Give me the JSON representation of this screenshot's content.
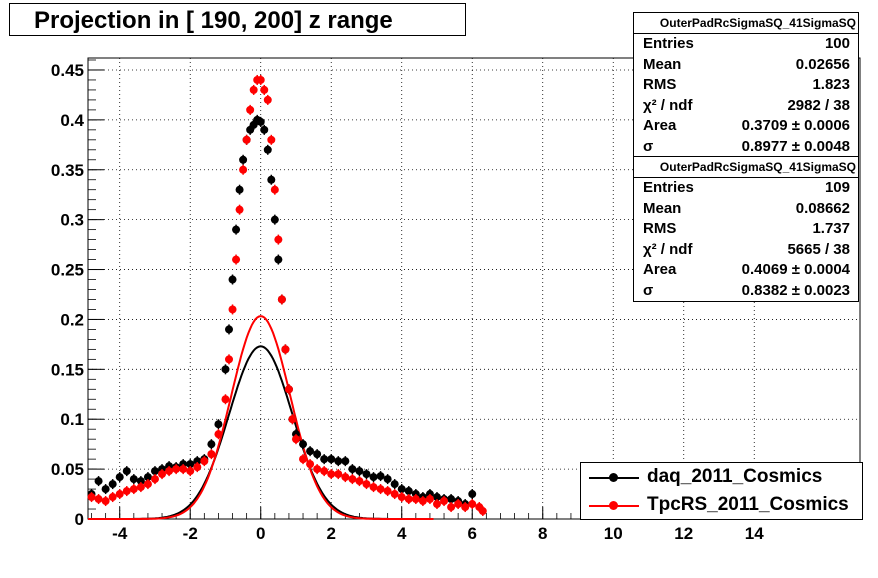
{
  "title": "Projection in [ 190, 200] z range",
  "chart_data": {
    "type": "scatter",
    "xlim": [
      -4.9,
      17.0
    ],
    "ylim": [
      0,
      0.462
    ],
    "xticks": [
      -4,
      -2,
      0,
      2,
      4,
      6,
      8,
      10,
      12,
      14
    ],
    "yticks": [
      0,
      0.05,
      0.1,
      0.15,
      0.2,
      0.25,
      0.3,
      0.35,
      0.4,
      0.45
    ],
    "grid": true,
    "legend_position": "bottom-right",
    "series": [
      {
        "name": "daq_2011_Cosmics",
        "color": "#000000",
        "x": [
          -4.8,
          -4.6,
          -4.4,
          -4.2,
          -4.0,
          -3.8,
          -3.6,
          -3.4,
          -3.2,
          -3.0,
          -2.8,
          -2.6,
          -2.4,
          -2.2,
          -2.0,
          -1.8,
          -1.6,
          -1.4,
          -1.2,
          -1.0,
          -0.9,
          -0.8,
          -0.7,
          -0.6,
          -0.5,
          -0.4,
          -0.3,
          -0.2,
          -0.1,
          0.0,
          0.1,
          0.2,
          0.3,
          0.4,
          0.5,
          0.6,
          0.7,
          0.8,
          0.9,
          1.0,
          1.2,
          1.4,
          1.6,
          1.8,
          2.0,
          2.2,
          2.4,
          2.6,
          2.8,
          3.0,
          3.2,
          3.4,
          3.6,
          3.8,
          4.0,
          4.2,
          4.4,
          4.6,
          4.8,
          5.0,
          5.2,
          5.4,
          5.6,
          5.8,
          6.0
        ],
        "y": [
          0.025,
          0.038,
          0.03,
          0.035,
          0.042,
          0.048,
          0.04,
          0.038,
          0.042,
          0.048,
          0.05,
          0.053,
          0.052,
          0.055,
          0.055,
          0.058,
          0.06,
          0.075,
          0.095,
          0.15,
          0.19,
          0.24,
          0.29,
          0.33,
          0.36,
          0.38,
          0.39,
          0.395,
          0.4,
          0.398,
          0.39,
          0.37,
          0.34,
          0.3,
          0.26,
          0.22,
          0.17,
          0.13,
          0.1,
          0.085,
          0.075,
          0.068,
          0.065,
          0.06,
          0.06,
          0.058,
          0.058,
          0.05,
          0.048,
          0.045,
          0.042,
          0.043,
          0.04,
          0.035,
          0.03,
          0.028,
          0.025,
          0.022,
          0.025,
          0.022,
          0.02,
          0.02,
          0.018,
          0.015,
          0.025
        ],
        "fit_area": 0.3709,
        "fit_sigma": 0.8977
      },
      {
        "name": "TpcRS_2011_Cosmics",
        "color": "#ff0000",
        "x": [
          -4.8,
          -4.6,
          -4.4,
          -4.2,
          -4.0,
          -3.8,
          -3.6,
          -3.4,
          -3.2,
          -3.0,
          -2.8,
          -2.6,
          -2.4,
          -2.2,
          -2.0,
          -1.8,
          -1.6,
          -1.4,
          -1.2,
          -1.0,
          -0.9,
          -0.8,
          -0.7,
          -0.6,
          -0.5,
          -0.4,
          -0.3,
          -0.2,
          -0.1,
          0.0,
          0.1,
          0.2,
          0.3,
          0.4,
          0.5,
          0.6,
          0.7,
          0.8,
          0.9,
          1.0,
          1.2,
          1.4,
          1.6,
          1.8,
          2.0,
          2.2,
          2.4,
          2.6,
          2.8,
          3.0,
          3.2,
          3.4,
          3.6,
          3.8,
          4.0,
          4.2,
          4.4,
          4.6,
          4.8,
          5.0,
          5.2,
          5.4,
          5.6,
          5.8,
          6.0,
          6.2,
          6.3
        ],
        "y": [
          0.022,
          0.02,
          0.018,
          0.022,
          0.025,
          0.028,
          0.03,
          0.032,
          0.035,
          0.04,
          0.045,
          0.048,
          0.05,
          0.05,
          0.048,
          0.052,
          0.058,
          0.065,
          0.085,
          0.12,
          0.16,
          0.21,
          0.26,
          0.31,
          0.35,
          0.38,
          0.41,
          0.43,
          0.44,
          0.44,
          0.43,
          0.42,
          0.38,
          0.33,
          0.28,
          0.22,
          0.17,
          0.13,
          0.1,
          0.08,
          0.06,
          0.055,
          0.05,
          0.048,
          0.045,
          0.045,
          0.042,
          0.04,
          0.038,
          0.035,
          0.032,
          0.03,
          0.028,
          0.025,
          0.022,
          0.02,
          0.02,
          0.018,
          0.02,
          0.015,
          0.018,
          0.012,
          0.015,
          0.012,
          0.015,
          0.012,
          0.008
        ],
        "fit_area": 0.4069,
        "fit_sigma": 0.8382
      }
    ]
  },
  "stats": [
    {
      "title": "OuterPadRcSigmaSQ_41SigmaSQ",
      "rows": [
        {
          "k": "Entries",
          "v": "100"
        },
        {
          "k": "Mean",
          "v": "0.02656"
        },
        {
          "k": "RMS",
          "v": "1.823"
        },
        {
          "k": "χ² / ndf",
          "v": "2982 / 38"
        },
        {
          "k": "Area",
          "v": "0.3709 ± 0.0006"
        },
        {
          "k": "σ",
          "v": "0.8977 ± 0.0048"
        }
      ]
    },
    {
      "title": "OuterPadRcSigmaSQ_41SigmaSQ",
      "rows": [
        {
          "k": "Entries",
          "v": "109"
        },
        {
          "k": "Mean",
          "v": "0.08662"
        },
        {
          "k": "RMS",
          "v": "1.737"
        },
        {
          "k": "χ² / ndf",
          "v": "5665 / 38"
        },
        {
          "k": "Area",
          "v": "0.4069 ± 0.0004"
        },
        {
          "k": "σ",
          "v": "0.8382 ± 0.0023"
        }
      ]
    }
  ],
  "legend": [
    {
      "label": "daq_2011_Cosmics",
      "color": "#000000"
    },
    {
      "label": "TpcRS_2011_Cosmics",
      "color": "#ff0000"
    }
  ]
}
